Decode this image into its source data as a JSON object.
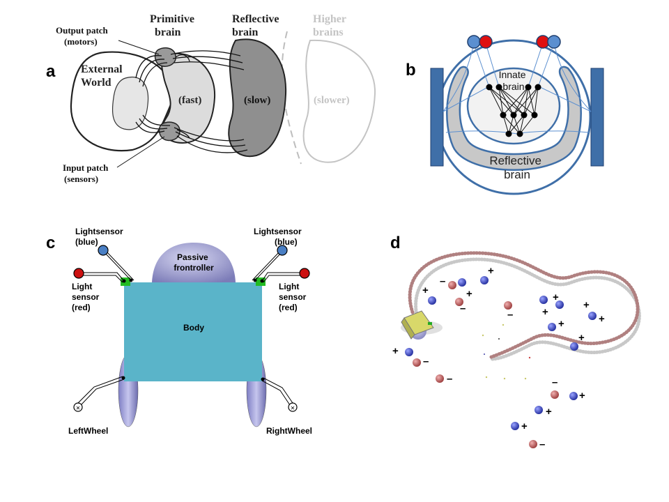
{
  "panels": {
    "a": {
      "letter": "a",
      "output_patch": [
        "Output patch",
        "(motors)"
      ],
      "input_patch": [
        "Input patch",
        "(sensors)"
      ],
      "primitive_brain": [
        "Primitive",
        "brain"
      ],
      "reflective_brain": [
        "Reflective",
        "brain"
      ],
      "higher_brains": [
        "Higher",
        "brains"
      ],
      "external_world": [
        "External",
        "World"
      ],
      "fast": "(fast)",
      "slow": "(slow)",
      "slower": "(slower)"
    },
    "b": {
      "letter": "b",
      "innate_brain": [
        "Innate",
        "brain"
      ],
      "reflective_brain": [
        "Reflective",
        "brain"
      ]
    },
    "c": {
      "letter": "c",
      "lightsensor_blue_left": [
        "Lightsensor",
        "(blue)"
      ],
      "lightsensor_blue_right": [
        "Lightsensor",
        "(blue)"
      ],
      "light_sensor_red_left": [
        "Light",
        "sensor",
        "(red)"
      ],
      "light_sensor_red_right": [
        "Light",
        "sensor",
        "(red)"
      ],
      "passive_frontroller": [
        "Passive",
        "frontroller"
      ],
      "body": "Body",
      "left_wheel": "LeftWheel",
      "right_wheel": "RightWheel"
    },
    "d": {
      "letter": "d",
      "plus": "+",
      "minus": "–"
    }
  },
  "colors": {
    "blue_accent": "#2e6db0",
    "panel_b_blue": "#3f6fa8",
    "body_cyan": "#5ab4c9",
    "sensor_red": "#cc1111",
    "sensor_blue": "#4a7fc4",
    "sensor_mount_green": "#22bb22",
    "frontroller": "#a7a7d6"
  }
}
